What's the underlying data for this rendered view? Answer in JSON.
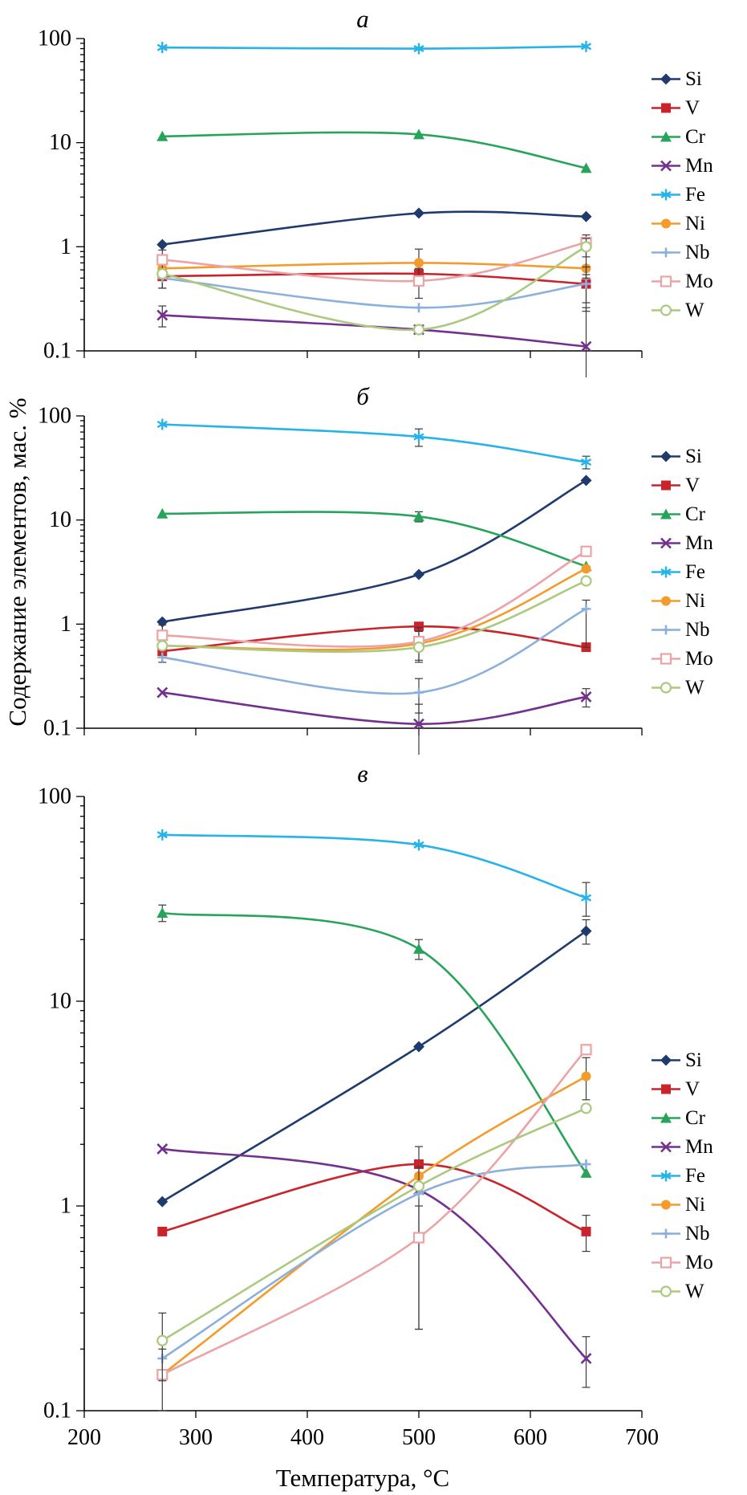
{
  "figure": {
    "ylabel": "Содержание элементов, мас. %",
    "xlabel": "Температура, °C"
  },
  "axes": {
    "xlim": [
      200,
      700
    ],
    "ylim": [
      0.1,
      100
    ],
    "yscale": "log",
    "grid": false,
    "legend_position": "right",
    "x_ticks": [
      200,
      300,
      400,
      500,
      600,
      700
    ],
    "y_tick_values": [
      0.1,
      1,
      10,
      100
    ],
    "y_tick_labels": [
      "0.1",
      "1",
      "10",
      "100"
    ]
  },
  "palette": {
    "Si": "#1f3b6e",
    "V": "#c9232b",
    "Cr": "#27a45a",
    "Mn": "#73308f",
    "Fe": "#26b3e8",
    "Ni": "#f39c2c",
    "Nb": "#8cb0dc",
    "Mo": "#eba3a6",
    "W": "#abc97f"
  },
  "markers": {
    "Si": "diamond",
    "V": "square",
    "Cr": "triangle",
    "Mn": "x",
    "Fe": "asterisk",
    "Ni": "circle",
    "Nb": "plus",
    "Mo": "square-open",
    "W": "circle-open"
  },
  "chart_data": [
    {
      "type": "line",
      "title": "a",
      "x": [
        270,
        500,
        650
      ],
      "series": [
        {
          "name": "Si",
          "values": [
            1.05,
            2.1,
            1.95
          ],
          "err": [
            null,
            null,
            null
          ]
        },
        {
          "name": "V",
          "values": [
            0.52,
            0.55,
            0.44
          ],
          "err": [
            [
              0.12,
              0.12
            ],
            null,
            [
              0.15,
              0.1
            ]
          ]
        },
        {
          "name": "Cr",
          "values": [
            11.5,
            12.0,
            5.7
          ],
          "err": [
            null,
            null,
            null
          ]
        },
        {
          "name": "Mn",
          "values": [
            0.22,
            0.16,
            0.11
          ],
          "err": [
            [
              0.05,
              0.05
            ],
            null,
            [
              0.06,
              0.15
            ]
          ]
        },
        {
          "name": "Fe",
          "values": [
            82,
            80,
            84
          ],
          "err": [
            null,
            null,
            null
          ]
        },
        {
          "name": "Ni",
          "values": [
            0.62,
            0.7,
            0.62
          ],
          "err": [
            null,
            [
              0.25,
              0.25
            ],
            null
          ]
        },
        {
          "name": "Nb",
          "values": [
            0.5,
            0.26,
            0.44
          ],
          "err": [
            [
              0.1,
              0.1
            ],
            null,
            [
              0.2,
              0.2
            ]
          ]
        },
        {
          "name": "Mo",
          "values": [
            0.75,
            0.47,
            1.1
          ],
          "err": [
            [
              0.18,
              0.18
            ],
            [
              0.15,
              0.15
            ],
            [
              0.3,
              0.2
            ]
          ]
        },
        {
          "name": "W",
          "values": [
            0.55,
            0.16,
            1.0
          ],
          "err": [
            null,
            null,
            [
              0.5,
              0.2
            ]
          ]
        }
      ]
    },
    {
      "type": "line",
      "title": "б",
      "x": [
        270,
        500,
        650
      ],
      "series": [
        {
          "name": "Si",
          "values": [
            1.05,
            3.0,
            24
          ],
          "err": [
            null,
            null,
            null
          ]
        },
        {
          "name": "V",
          "values": [
            0.55,
            0.95,
            0.6
          ],
          "err": [
            [
              0.12,
              0.12
            ],
            null,
            null
          ]
        },
        {
          "name": "Cr",
          "values": [
            11.5,
            10.8,
            3.6
          ],
          "err": [
            null,
            [
              1.2,
              1.2
            ],
            null
          ]
        },
        {
          "name": "Mn",
          "values": [
            0.22,
            0.11,
            0.2
          ],
          "err": [
            null,
            [
              0.06,
              0.06
            ],
            [
              0.04,
              0.04
            ]
          ]
        },
        {
          "name": "Fe",
          "values": [
            83,
            63,
            36
          ],
          "err": [
            null,
            [
              12,
              12
            ],
            [
              5,
              5
            ]
          ]
        },
        {
          "name": "Ni",
          "values": [
            0.62,
            0.65,
            3.4
          ],
          "err": [
            null,
            [
              0.2,
              0.2
            ],
            null
          ]
        },
        {
          "name": "Nb",
          "values": [
            0.48,
            0.22,
            1.4
          ],
          "err": [
            null,
            [
              0.08,
              0.08
            ],
            [
              0.8,
              0.3
            ]
          ]
        },
        {
          "name": "Mo",
          "values": [
            0.78,
            0.68,
            5.0
          ],
          "err": [
            [
              0.2,
              0.2
            ],
            [
              0.25,
              0.25
            ],
            null
          ]
        },
        {
          "name": "W",
          "values": [
            0.62,
            0.6,
            2.6
          ],
          "err": [
            null,
            null,
            null
          ]
        }
      ]
    },
    {
      "type": "line",
      "title": "в",
      "x": [
        270,
        500,
        650
      ],
      "series": [
        {
          "name": "Si",
          "values": [
            1.05,
            6.0,
            22
          ],
          "err": [
            null,
            null,
            [
              3,
              3
            ]
          ]
        },
        {
          "name": "V",
          "values": [
            0.75,
            1.6,
            0.75
          ],
          "err": [
            null,
            [
              0.35,
              0.35
            ],
            [
              0.15,
              0.15
            ]
          ]
        },
        {
          "name": "Cr",
          "values": [
            27,
            18,
            1.45
          ],
          "err": [
            [
              2.5,
              2.5
            ],
            [
              2,
              2
            ],
            null
          ]
        },
        {
          "name": "Mn",
          "values": [
            1.9,
            1.2,
            0.18
          ],
          "err": [
            null,
            null,
            [
              0.05,
              0.05
            ]
          ]
        },
        {
          "name": "Fe",
          "values": [
            65,
            58,
            32
          ],
          "err": [
            null,
            null,
            [
              6,
              6
            ]
          ]
        },
        {
          "name": "Ni",
          "values": [
            0.15,
            1.4,
            4.3
          ],
          "err": [
            [
              0.05,
              0.05
            ],
            null,
            [
              1.0,
              1.0
            ]
          ]
        },
        {
          "name": "Nb",
          "values": [
            0.18,
            1.15,
            1.6
          ],
          "err": [
            null,
            [
              0.9,
              0.4
            ],
            null
          ]
        },
        {
          "name": "Mo",
          "values": [
            0.15,
            0.7,
            5.8
          ],
          "err": [
            null,
            [
              0.45,
              0.3
            ],
            null
          ]
        },
        {
          "name": "W",
          "values": [
            0.22,
            1.25,
            3.0
          ],
          "err": [
            [
              0.08,
              0.08
            ],
            null,
            null
          ]
        }
      ]
    }
  ]
}
